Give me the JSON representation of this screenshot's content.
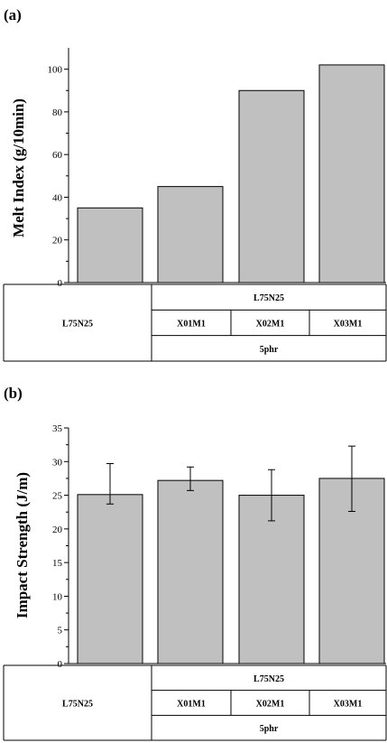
{
  "chart_data": [
    {
      "type": "bar",
      "panel_label": "(a)",
      "ylabel": "Melt Index (g/10min)",
      "ylim": [
        0,
        110
      ],
      "yticks": [
        0,
        20,
        40,
        60,
        80,
        100
      ],
      "bar_color": "#c0c0c0",
      "values": [
        35,
        45,
        90,
        102
      ],
      "errors": null,
      "table": {
        "control": "L75N25",
        "group_label": "L75N25",
        "samples": [
          "X01M1",
          "X02M1",
          "X03M1"
        ],
        "loading": "5phr"
      }
    },
    {
      "type": "bar",
      "panel_label": "(b)",
      "ylabel": "Impact Strength (J/m)",
      "ylim": [
        0,
        35
      ],
      "yticks": [
        0,
        5,
        10,
        15,
        20,
        25,
        30,
        35
      ],
      "bar_color": "#c0c0c0",
      "values": [
        25.1,
        27.2,
        25.0,
        27.5
      ],
      "errors": [
        {
          "low": 23.7,
          "high": 29.7
        },
        {
          "low": 25.7,
          "high": 29.2
        },
        {
          "low": 21.2,
          "high": 28.8
        },
        {
          "low": 22.6,
          "high": 32.3
        }
      ],
      "table": {
        "control": "L75N25",
        "group_label": "L75N25",
        "samples": [
          "X01M1",
          "X02M1",
          "X03M1"
        ],
        "loading": "5phr"
      }
    }
  ]
}
